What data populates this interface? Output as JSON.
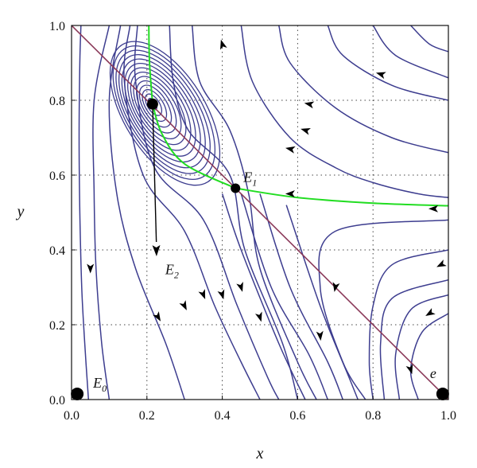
{
  "chart_data": {
    "type": "phase-portrait",
    "title": "",
    "xlabel": "x",
    "ylabel": "y",
    "xlim": [
      0.0,
      1.0
    ],
    "ylim": [
      0.0,
      1.0
    ],
    "x_ticks": [
      "0.0",
      "0.2",
      "0.4",
      "0.6",
      "0.8",
      "1.0"
    ],
    "y_ticks": [
      "0.0",
      "0.2",
      "0.4",
      "0.6",
      "0.8",
      "1.0"
    ],
    "grid": "dotted",
    "colors": {
      "trajectories": "#3d3d8f",
      "separatrix": "#22dd22",
      "isocline": "#8b3a5a",
      "points": "#000000"
    },
    "equilibria": [
      {
        "name": "E",
        "sub": "0",
        "x": 0.015,
        "y": 0.015
      },
      {
        "name": "E",
        "sub": "1",
        "x": 0.435,
        "y": 0.565
      },
      {
        "name": "E",
        "sub": "2",
        "x": 0.215,
        "y": 0.79
      },
      {
        "name": "e",
        "sub": "",
        "x": 0.985,
        "y": 0.015
      }
    ],
    "isocline": [
      [
        0.0,
        1.0
      ],
      [
        1.0,
        0.0
      ]
    ],
    "separatrices": [
      [
        [
          0.205,
          1.0
        ],
        [
          0.207,
          0.9
        ],
        [
          0.215,
          0.79
        ]
      ],
      [
        [
          0.215,
          0.79
        ],
        [
          0.24,
          0.71
        ],
        [
          0.3,
          0.63
        ],
        [
          0.435,
          0.565
        ]
      ],
      [
        [
          0.435,
          0.565
        ],
        [
          0.6,
          0.54
        ],
        [
          0.8,
          0.525
        ],
        [
          1.0,
          0.518
        ]
      ]
    ],
    "eigen_arrow": [
      [
        0.215,
        0.79
      ],
      [
        0.225,
        0.4
      ]
    ],
    "trajectories": [
      [
        [
          0.025,
          1.0
        ],
        [
          0.022,
          0.9
        ],
        [
          0.02,
          0.7
        ],
        [
          0.022,
          0.5
        ],
        [
          0.027,
          0.3
        ],
        [
          0.035,
          0.15
        ],
        [
          0.045,
          0.0
        ]
      ],
      [
        [
          0.1,
          1.0
        ],
        [
          0.06,
          0.8
        ],
        [
          0.06,
          0.55
        ],
        [
          0.065,
          0.35
        ],
        [
          0.08,
          0.15
        ],
        [
          0.1,
          0.0
        ]
      ],
      [
        [
          0.13,
          1.0
        ],
        [
          0.1,
          0.8
        ],
        [
          0.12,
          0.55
        ],
        [
          0.17,
          0.35
        ],
        [
          0.25,
          0.15
        ],
        [
          0.3,
          0.0
        ]
      ],
      [
        [
          0.155,
          1.0
        ],
        [
          0.14,
          0.85
        ],
        [
          0.19,
          0.6
        ],
        [
          0.3,
          0.45
        ],
        [
          0.38,
          0.25
        ],
        [
          0.45,
          0.1
        ],
        [
          0.5,
          0.0
        ]
      ],
      [
        [
          0.175,
          1.0
        ],
        [
          0.17,
          0.85
        ],
        [
          0.22,
          0.62
        ],
        [
          0.35,
          0.48
        ],
        [
          0.44,
          0.25
        ],
        [
          0.52,
          0.06
        ],
        [
          0.55,
          0.0
        ]
      ],
      [
        [
          0.26,
          1.0
        ],
        [
          0.27,
          0.85
        ],
        [
          0.31,
          0.72
        ],
        [
          0.42,
          0.6
        ],
        [
          0.46,
          0.4
        ],
        [
          0.56,
          0.15
        ],
        [
          0.6,
          0.0
        ]
      ],
      [
        [
          0.32,
          1.0
        ],
        [
          0.34,
          0.85
        ],
        [
          0.42,
          0.72
        ],
        [
          0.47,
          0.55
        ],
        [
          0.5,
          0.35
        ],
        [
          0.6,
          0.1
        ],
        [
          0.65,
          0.0
        ]
      ],
      [
        [
          0.4,
          0.55
        ],
        [
          0.45,
          0.4
        ],
        [
          0.55,
          0.15
        ],
        [
          0.62,
          0.0
        ]
      ],
      [
        [
          0.45,
          0.55
        ],
        [
          0.53,
          0.3
        ],
        [
          0.63,
          0.12
        ],
        [
          0.68,
          0.0
        ]
      ],
      [
        [
          0.5,
          0.55
        ],
        [
          0.58,
          0.3
        ],
        [
          0.68,
          0.1
        ],
        [
          0.72,
          0.0
        ]
      ],
      [
        [
          0.57,
          0.52
        ],
        [
          0.66,
          0.25
        ],
        [
          0.74,
          0.05
        ],
        [
          0.76,
          0.0
        ]
      ],
      [
        [
          1.0,
          0.48
        ],
        [
          0.7,
          0.45
        ],
        [
          0.66,
          0.3
        ],
        [
          0.72,
          0.1
        ],
        [
          0.78,
          0.0
        ]
      ],
      [
        [
          1.0,
          0.4
        ],
        [
          0.85,
          0.36
        ],
        [
          0.8,
          0.25
        ],
        [
          0.79,
          0.1
        ],
        [
          0.8,
          0.0
        ]
      ],
      [
        [
          1.0,
          0.32
        ],
        [
          0.85,
          0.27
        ],
        [
          0.82,
          0.15
        ],
        [
          0.83,
          0.0
        ]
      ],
      [
        [
          1.0,
          0.28
        ],
        [
          0.9,
          0.24
        ],
        [
          0.86,
          0.12
        ],
        [
          0.87,
          0.0
        ]
      ],
      [
        [
          1.0,
          0.23
        ],
        [
          0.93,
          0.18
        ],
        [
          0.9,
          0.08
        ],
        [
          0.92,
          0.0
        ]
      ],
      [
        [
          0.45,
          1.0
        ],
        [
          0.48,
          0.85
        ],
        [
          0.58,
          0.7
        ],
        [
          0.7,
          0.62
        ],
        [
          0.8,
          0.58
        ],
        [
          0.92,
          0.55
        ],
        [
          1.0,
          0.54
        ]
      ],
      [
        [
          0.55,
          1.0
        ],
        [
          0.58,
          0.9
        ],
        [
          0.7,
          0.78
        ],
        [
          0.85,
          0.7
        ],
        [
          1.0,
          0.66
        ]
      ],
      [
        [
          0.68,
          1.0
        ],
        [
          0.72,
          0.92
        ],
        [
          0.85,
          0.84
        ],
        [
          1.0,
          0.8
        ]
      ],
      [
        [
          0.8,
          1.0
        ],
        [
          0.86,
          0.92
        ],
        [
          1.0,
          0.86
        ]
      ],
      [
        [
          0.9,
          1.0
        ],
        [
          0.95,
          0.95
        ],
        [
          1.0,
          0.93
        ]
      ]
    ],
    "flow_arrows": [
      {
        "x": 0.96,
        "y": 0.51,
        "dir": [
          -1,
          0
        ]
      },
      {
        "x": 0.58,
        "y": 0.55,
        "dir": [
          -1,
          0
        ]
      },
      {
        "x": 0.05,
        "y": 0.35,
        "dir": [
          0,
          -1
        ]
      },
      {
        "x": 0.23,
        "y": 0.22,
        "dir": [
          0.6,
          -1
        ]
      },
      {
        "x": 0.3,
        "y": 0.25,
        "dir": [
          0.5,
          -1
        ]
      },
      {
        "x": 0.35,
        "y": 0.28,
        "dir": [
          0.4,
          -1
        ]
      },
      {
        "x": 0.4,
        "y": 0.28,
        "dir": [
          0.3,
          -1
        ]
      },
      {
        "x": 0.45,
        "y": 0.3,
        "dir": [
          0.3,
          -1
        ]
      },
      {
        "x": 0.5,
        "y": 0.22,
        "dir": [
          0.3,
          -1
        ]
      },
      {
        "x": 0.66,
        "y": 0.17,
        "dir": [
          0.1,
          -1
        ]
      },
      {
        "x": 0.7,
        "y": 0.3,
        "dir": [
          -0.2,
          -1
        ]
      },
      {
        "x": 0.9,
        "y": 0.08,
        "dir": [
          0.3,
          -1
        ]
      },
      {
        "x": 0.95,
        "y": 0.23,
        "dir": [
          -1,
          -0.6
        ]
      },
      {
        "x": 0.98,
        "y": 0.36,
        "dir": [
          -1,
          -0.5
        ]
      },
      {
        "x": 0.58,
        "y": 0.67,
        "dir": [
          -1,
          0.2
        ]
      },
      {
        "x": 0.62,
        "y": 0.72,
        "dir": [
          -1,
          0.3
        ]
      },
      {
        "x": 0.63,
        "y": 0.79,
        "dir": [
          -1,
          0.2
        ]
      },
      {
        "x": 0.82,
        "y": 0.87,
        "dir": [
          -1,
          0.3
        ]
      },
      {
        "x": 0.4,
        "y": 0.95,
        "dir": [
          -0.3,
          1
        ]
      }
    ]
  }
}
